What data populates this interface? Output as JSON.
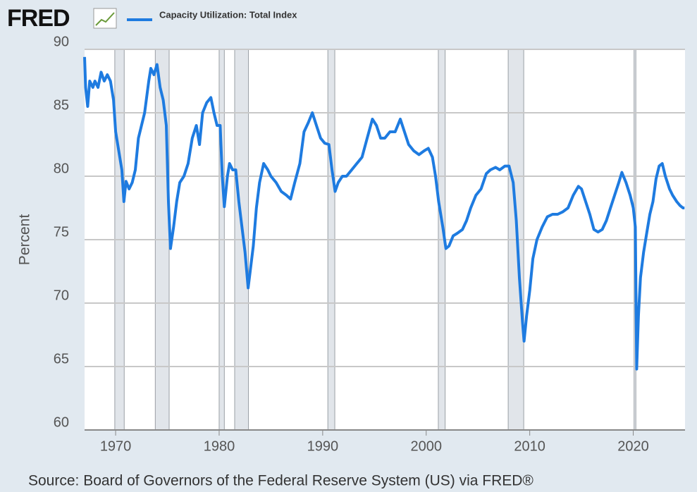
{
  "chart_data": {
    "type": "line",
    "logo": "FRED",
    "ylabel": "Percent",
    "source": "Source: Board of Governors of the Federal Reserve System (US) via FRED®",
    "xlim": [
      1967,
      2025
    ],
    "ylim": [
      60,
      90
    ],
    "xticks": [
      1970,
      1980,
      1990,
      2000,
      2010,
      2020
    ],
    "yticks": [
      60,
      65,
      70,
      75,
      80,
      85,
      90
    ],
    "grid": true,
    "recessions": [
      [
        1969.92,
        1970.83
      ],
      [
        1973.83,
        1975.17
      ],
      [
        1980.0,
        1980.5
      ],
      [
        1981.5,
        1982.83
      ],
      [
        1990.5,
        1991.17
      ],
      [
        2001.17,
        2001.83
      ],
      [
        2007.92,
        2009.42
      ],
      [
        2020.08,
        2020.25
      ]
    ],
    "x": [
      1967.0,
      1967.1,
      1967.3,
      1967.5,
      1967.8,
      1968.0,
      1968.3,
      1968.6,
      1968.9,
      1969.2,
      1969.5,
      1969.8,
      1970.0,
      1970.3,
      1970.6,
      1970.8,
      1971.0,
      1971.3,
      1971.6,
      1971.9,
      1972.2,
      1972.5,
      1972.8,
      1973.2,
      1973.4,
      1973.7,
      1974.0,
      1974.3,
      1974.6,
      1974.9,
      1975.1,
      1975.3,
      1975.6,
      1975.9,
      1976.2,
      1976.6,
      1977.0,
      1977.4,
      1977.8,
      1978.1,
      1978.4,
      1978.8,
      1979.2,
      1979.5,
      1979.8,
      1980.1,
      1980.3,
      1980.5,
      1980.8,
      1981.0,
      1981.3,
      1981.6,
      1981.9,
      1982.2,
      1982.5,
      1982.8,
      1983.0,
      1983.3,
      1983.6,
      1983.9,
      1984.3,
      1984.7,
      1985.0,
      1985.5,
      1986.0,
      1986.5,
      1986.9,
      1987.3,
      1987.8,
      1988.2,
      1988.6,
      1989.0,
      1989.4,
      1989.8,
      1990.2,
      1990.6,
      1990.9,
      1991.2,
      1991.5,
      1991.9,
      1992.3,
      1992.8,
      1993.3,
      1993.8,
      1994.3,
      1994.8,
      1995.2,
      1995.6,
      1996.0,
      1996.5,
      1997.0,
      1997.5,
      1997.9,
      1998.3,
      1998.8,
      1999.3,
      1999.8,
      2000.2,
      2000.6,
      2000.9,
      2001.2,
      2001.6,
      2001.9,
      2002.2,
      2002.6,
      2003.0,
      2003.5,
      2003.9,
      2004.3,
      2004.8,
      2005.3,
      2005.8,
      2006.2,
      2006.7,
      2007.1,
      2007.6,
      2008.0,
      2008.4,
      2008.7,
      2009.0,
      2009.3,
      2009.45,
      2009.7,
      2010.0,
      2010.3,
      2010.7,
      2011.2,
      2011.7,
      2012.2,
      2012.7,
      2013.2,
      2013.7,
      2014.2,
      2014.7,
      2015.0,
      2015.4,
      2015.8,
      2016.2,
      2016.6,
      2017.0,
      2017.4,
      2017.8,
      2018.2,
      2018.6,
      2018.9,
      2019.3,
      2019.7,
      2020.0,
      2020.2,
      2020.33,
      2020.5,
      2020.7,
      2021.0,
      2021.3,
      2021.6,
      2021.9,
      2022.2,
      2022.5,
      2022.8,
      2023.1,
      2023.5,
      2023.8,
      2024.2,
      2024.5,
      2024.8,
      2024.95
    ],
    "series": [
      {
        "name": "Capacity Utilization: Total Index",
        "color": "#1e7be0",
        "values": [
          89.4,
          87,
          85.5,
          87.5,
          87,
          87.5,
          87,
          88.2,
          87.5,
          88,
          87.5,
          86,
          83.5,
          82,
          80.5,
          78,
          79.6,
          79,
          79.5,
          80.5,
          83,
          84,
          85,
          87.5,
          88.5,
          88,
          88.8,
          87,
          86,
          84,
          78,
          74.3,
          76,
          78,
          79.5,
          80,
          81,
          83,
          84,
          82.5,
          85,
          85.8,
          86.2,
          85,
          84,
          84,
          80,
          77.6,
          80,
          81,
          80.5,
          80.5,
          78,
          76,
          74,
          71.2,
          72.5,
          74.5,
          77.5,
          79.5,
          81,
          80.5,
          80,
          79.5,
          78.8,
          78.5,
          78.2,
          79.5,
          81,
          83.5,
          84.2,
          85,
          84,
          83,
          82.6,
          82.5,
          80.5,
          78.8,
          79.5,
          80,
          80,
          80.5,
          81,
          81.5,
          83,
          84.5,
          84,
          83,
          83,
          83.5,
          83.5,
          84.5,
          83.5,
          82.5,
          82,
          81.7,
          82,
          82.2,
          81.5,
          80,
          78,
          76,
          74.3,
          74.5,
          75.3,
          75.5,
          75.8,
          76.5,
          77.5,
          78.5,
          79,
          80.2,
          80.5,
          80.7,
          80.5,
          80.8,
          80.8,
          79.5,
          76.5,
          72,
          68.5,
          67,
          69,
          71,
          73.5,
          75,
          76,
          76.8,
          77,
          77,
          77.2,
          77.5,
          78.5,
          79.2,
          79,
          78,
          77,
          75.8,
          75.6,
          75.8,
          76.5,
          77.5,
          78.5,
          79.5,
          80.3,
          79.5,
          78.5,
          77.5,
          76,
          64.8,
          69,
          72,
          74,
          75.5,
          77,
          78,
          79.8,
          80.8,
          81,
          80,
          79,
          78.5,
          78,
          77.7,
          77.5,
          77.5
        ]
      }
    ]
  }
}
